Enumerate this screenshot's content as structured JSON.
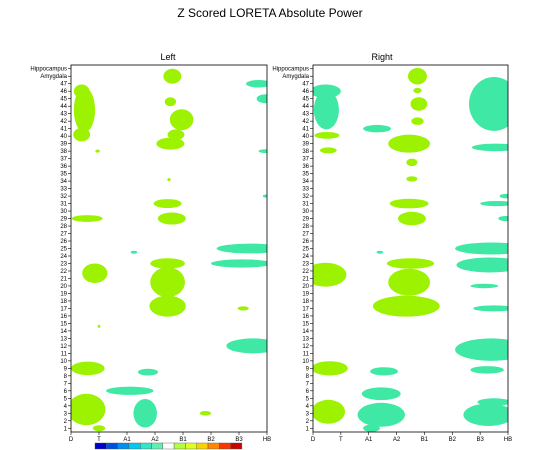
{
  "chart_data": {
    "type": "heatmap",
    "title": "Z Scored LORETA Absolute Power",
    "panels": [
      {
        "title": "Left"
      },
      {
        "title": "Right"
      }
    ],
    "x_ticks": [
      "D",
      "T",
      "A1",
      "A2",
      "B1",
      "B2",
      "B3",
      "HB"
    ],
    "y_ticks": [
      "1",
      "2",
      "3",
      "4",
      "5",
      "6",
      "7",
      "8",
      "9",
      "10",
      "11",
      "12",
      "13",
      "14",
      "15",
      "16",
      "17",
      "18",
      "19",
      "20",
      "21",
      "22",
      "23",
      "24",
      "25",
      "26",
      "27",
      "28",
      "29",
      "30",
      "31",
      "32",
      "33",
      "34",
      "35",
      "36",
      "37",
      "38",
      "39",
      "40",
      "41",
      "42",
      "43",
      "44",
      "45",
      "46",
      "47",
      "Amygdala",
      "Hippocampus"
    ],
    "colorbar": [
      "#0000cc",
      "#0050e0",
      "#0090f0",
      "#00c8f0",
      "#30e8c8",
      "#60f0b0",
      "#ffffff",
      "#b0ff40",
      "#e0ff20",
      "#ffd000",
      "#ff8800",
      "#ff3300",
      "#cc0000"
    ],
    "z_colors": {
      "neg_low": "#3fe8a4",
      "neg_mid": "#00c6c6",
      "pos_low": "#9cf200",
      "pos_mid": "#ffff00"
    },
    "blobs": {
      "left": [
        {
          "z": 1,
          "x": 0.38,
          "y": 46.0,
          "rx": 0.28,
          "ry": 0.9
        },
        {
          "z": 1,
          "x": 0.48,
          "y": 43.5,
          "rx": 0.38,
          "ry": 3.0
        },
        {
          "z": 1,
          "x": 0.38,
          "y": 40.2,
          "rx": 0.3,
          "ry": 0.9
        },
        {
          "z": 1,
          "x": 3.62,
          "y": 48.0,
          "rx": 0.32,
          "ry": 1.0
        },
        {
          "z": 1,
          "x": 3.55,
          "y": 44.6,
          "rx": 0.2,
          "ry": 0.6
        },
        {
          "z": 1,
          "x": 3.95,
          "y": 42.2,
          "rx": 0.42,
          "ry": 1.4
        },
        {
          "z": 1,
          "x": 3.75,
          "y": 40.2,
          "rx": 0.3,
          "ry": 0.7
        },
        {
          "z": 1,
          "x": 3.55,
          "y": 39.0,
          "rx": 0.5,
          "ry": 0.8
        },
        {
          "z": 1,
          "x": 0.95,
          "y": 38.0,
          "rx": 0.08,
          "ry": 0.2
        },
        {
          "z": 1,
          "x": 3.5,
          "y": 34.2,
          "rx": 0.06,
          "ry": 0.2
        },
        {
          "z": 1,
          "x": 3.45,
          "y": 31.0,
          "rx": 0.5,
          "ry": 0.6
        },
        {
          "z": 1,
          "x": 3.6,
          "y": 29.0,
          "rx": 0.5,
          "ry": 0.8
        },
        {
          "z": 1,
          "x": 0.58,
          "y": 29.0,
          "rx": 0.55,
          "ry": 0.45
        },
        {
          "z": 1,
          "x": 0.85,
          "y": 21.7,
          "rx": 0.45,
          "ry": 1.3
        },
        {
          "z": 1,
          "x": 3.45,
          "y": 23.0,
          "rx": 0.62,
          "ry": 0.7
        },
        {
          "z": 1,
          "x": 3.45,
          "y": 20.5,
          "rx": 0.62,
          "ry": 2.0
        },
        {
          "z": 1,
          "x": 3.45,
          "y": 17.3,
          "rx": 0.65,
          "ry": 1.4
        },
        {
          "z": 1,
          "x": 1.0,
          "y": 14.6,
          "rx": 0.05,
          "ry": 0.2
        },
        {
          "z": 1,
          "x": 0.6,
          "y": 9.0,
          "rx": 0.6,
          "ry": 0.9
        },
        {
          "z": 1,
          "x": 0.55,
          "y": 3.5,
          "rx": 0.68,
          "ry": 2.1
        },
        {
          "z": 1,
          "x": 1.0,
          "y": 1.0,
          "rx": 0.22,
          "ry": 0.4
        },
        {
          "z": 1,
          "x": 4.8,
          "y": 3.0,
          "rx": 0.2,
          "ry": 0.3
        },
        {
          "z": 1,
          "x": 6.15,
          "y": 17.0,
          "rx": 0.2,
          "ry": 0.28
        },
        {
          "z": -1,
          "x": 6.7,
          "y": 47.0,
          "rx": 0.45,
          "ry": 0.5
        },
        {
          "z": -1,
          "x": 6.95,
          "y": 45.0,
          "rx": 0.32,
          "ry": 0.6
        },
        {
          "z": -1,
          "x": 6.95,
          "y": 38.0,
          "rx": 0.25,
          "ry": 0.25
        },
        {
          "z": -1,
          "x": 6.95,
          "y": 32.0,
          "rx": 0.1,
          "ry": 0.2
        },
        {
          "z": -1,
          "x": 2.25,
          "y": 24.5,
          "rx": 0.12,
          "ry": 0.2
        },
        {
          "z": -1,
          "x": 6.4,
          "y": 25.0,
          "rx": 1.2,
          "ry": 0.65
        },
        {
          "z": -1,
          "x": 6.1,
          "y": 23.0,
          "rx": 1.1,
          "ry": 0.55
        },
        {
          "z": -1,
          "x": 6.5,
          "y": 12.0,
          "rx": 0.95,
          "ry": 1.0
        },
        {
          "z": -1,
          "x": 2.75,
          "y": 8.5,
          "rx": 0.36,
          "ry": 0.45
        },
        {
          "z": -1,
          "x": 2.1,
          "y": 6.0,
          "rx": 0.85,
          "ry": 0.55
        },
        {
          "z": -1,
          "x": 2.65,
          "y": 3.0,
          "rx": 0.42,
          "ry": 1.9
        }
      ],
      "right": [
        {
          "z": 1,
          "x": 3.75,
          "y": 48.0,
          "rx": 0.34,
          "ry": 1.1
        },
        {
          "z": 1,
          "x": 3.75,
          "y": 46.1,
          "rx": 0.15,
          "ry": 0.35
        },
        {
          "z": 1,
          "x": 3.8,
          "y": 44.3,
          "rx": 0.3,
          "ry": 0.9
        },
        {
          "z": 1,
          "x": 3.75,
          "y": 42.0,
          "rx": 0.22,
          "ry": 0.5
        },
        {
          "z": 1,
          "x": 3.45,
          "y": 39.0,
          "rx": 0.75,
          "ry": 1.2
        },
        {
          "z": 1,
          "x": 3.55,
          "y": 36.5,
          "rx": 0.2,
          "ry": 0.5
        },
        {
          "z": 1,
          "x": 3.55,
          "y": 34.3,
          "rx": 0.2,
          "ry": 0.35
        },
        {
          "z": 1,
          "x": 3.45,
          "y": 31.0,
          "rx": 0.7,
          "ry": 0.65
        },
        {
          "z": 1,
          "x": 3.55,
          "y": 29.0,
          "rx": 0.5,
          "ry": 0.9
        },
        {
          "z": 1,
          "x": 0.5,
          "y": 40.1,
          "rx": 0.45,
          "ry": 0.45
        },
        {
          "z": 1,
          "x": 0.55,
          "y": 38.1,
          "rx": 0.3,
          "ry": 0.4
        },
        {
          "z": 1,
          "x": 0.45,
          "y": 21.5,
          "rx": 0.75,
          "ry": 1.6
        },
        {
          "z": 1,
          "x": 3.5,
          "y": 23.0,
          "rx": 0.85,
          "ry": 0.7
        },
        {
          "z": 1,
          "x": 3.45,
          "y": 20.5,
          "rx": 0.75,
          "ry": 1.8
        },
        {
          "z": 1,
          "x": 3.35,
          "y": 17.3,
          "rx": 1.2,
          "ry": 1.4
        },
        {
          "z": 1,
          "x": 0.6,
          "y": 9.0,
          "rx": 0.65,
          "ry": 0.95
        },
        {
          "z": 1,
          "x": 0.55,
          "y": 3.2,
          "rx": 0.6,
          "ry": 1.6
        },
        {
          "z": -1,
          "x": 0.45,
          "y": 46.0,
          "rx": 0.55,
          "ry": 0.9
        },
        {
          "z": -1,
          "x": 0.48,
          "y": 43.5,
          "rx": 0.45,
          "ry": 2.6
        },
        {
          "z": -1,
          "x": 2.3,
          "y": 41.0,
          "rx": 0.5,
          "ry": 0.5
        },
        {
          "z": -1,
          "x": 6.5,
          "y": 44.3,
          "rx": 0.9,
          "ry": 3.6
        },
        {
          "z": -1,
          "x": 6.55,
          "y": 38.5,
          "rx": 0.85,
          "ry": 0.5
        },
        {
          "z": -1,
          "x": 6.95,
          "y": 32.0,
          "rx": 0.25,
          "ry": 0.3
        },
        {
          "z": -1,
          "x": 6.6,
          "y": 31.0,
          "rx": 0.6,
          "ry": 0.35
        },
        {
          "z": -1,
          "x": 6.95,
          "y": 29.0,
          "rx": 0.3,
          "ry": 0.35
        },
        {
          "z": -1,
          "x": 6.4,
          "y": 25.0,
          "rx": 1.3,
          "ry": 0.8
        },
        {
          "z": -1,
          "x": 6.35,
          "y": 22.8,
          "rx": 1.2,
          "ry": 1.0
        },
        {
          "z": -1,
          "x": 6.15,
          "y": 20.0,
          "rx": 0.5,
          "ry": 0.3
        },
        {
          "z": -1,
          "x": 6.5,
          "y": 17.0,
          "rx": 0.75,
          "ry": 0.4
        },
        {
          "z": -1,
          "x": 6.4,
          "y": 11.5,
          "rx": 1.3,
          "ry": 1.5
        },
        {
          "z": -1,
          "x": 6.25,
          "y": 8.8,
          "rx": 0.6,
          "ry": 0.5
        },
        {
          "z": -1,
          "x": 6.5,
          "y": 4.5,
          "rx": 0.6,
          "ry": 0.5
        },
        {
          "z": -1,
          "x": 6.3,
          "y": 2.8,
          "rx": 0.9,
          "ry": 1.5
        },
        {
          "z": -1,
          "x": 2.4,
          "y": 24.5,
          "rx": 0.12,
          "ry": 0.2
        },
        {
          "z": -1,
          "x": 2.55,
          "y": 8.6,
          "rx": 0.5,
          "ry": 0.55
        },
        {
          "z": -1,
          "x": 2.45,
          "y": 5.6,
          "rx": 0.7,
          "ry": 0.85
        },
        {
          "z": -1,
          "x": 2.45,
          "y": 2.8,
          "rx": 0.85,
          "ry": 1.6
        },
        {
          "z": -1,
          "x": 2.1,
          "y": 1.0,
          "rx": 0.3,
          "ry": 0.5
        }
      ]
    }
  }
}
